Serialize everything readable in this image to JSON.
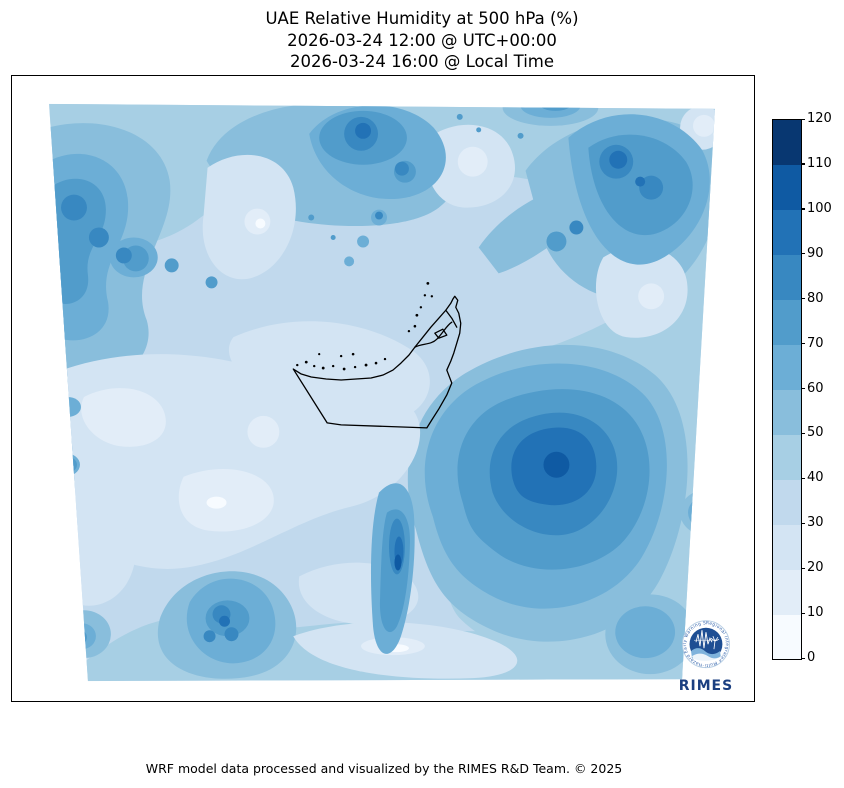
{
  "header": {
    "title": "UAE Relative Humidity at 500 hPa (%)",
    "subtitle_utc": "2026-03-24 12:00 @ UTC+00:00",
    "subtitle_local": "2026-03-24 16:00 @ Local Time"
  },
  "footer": {
    "credit": "WRF model data processed and visualized by the RIMES R&D Team. © 2025"
  },
  "logo": {
    "label": "RIMES",
    "ring_text": "Regional Integrated Multi-Hazard Early Warning System"
  },
  "chart_data": {
    "type": "heatmap",
    "subtype": "filled-contour-map",
    "title": "UAE Relative Humidity at 500 hPa (%)",
    "subtitle_utc": "2026-03-24 12:00 @ UTC+00:00",
    "subtitle_local": "2026-03-24 16:00 @ Local Time",
    "variable": "Relative Humidity",
    "units": "%",
    "pressure_level": "500 hPa",
    "region_outline": "United Arab Emirates",
    "colormap": "Blues",
    "legend_position": "right",
    "levels": [
      0,
      10,
      20,
      30,
      40,
      50,
      60,
      70,
      80,
      90,
      100,
      110,
      120
    ],
    "colors": [
      "#f7fbff",
      "#e2edf8",
      "#d3e4f3",
      "#c1d9ed",
      "#a7cfe4",
      "#89bedc",
      "#6caed6",
      "#519ccb",
      "#3888c1",
      "#2272b6",
      "#0f5aa3",
      "#083771"
    ],
    "colorbar_tick_labels": [
      "0",
      "10",
      "20",
      "30",
      "40",
      "50",
      "60",
      "70",
      "80",
      "90",
      "100",
      "110",
      "120"
    ],
    "features": [
      {
        "location": "large mass east/southeast of UAE (center-right of domain)",
        "value_range": "70-110"
      },
      {
        "location": "northern band across top of domain",
        "value_range": "50-90 with local maxima 90-100"
      },
      {
        "location": "northeast corner cluster",
        "value_range": "80-100"
      },
      {
        "location": "northwest corner blobs",
        "value_range": "70-90"
      },
      {
        "location": "center-left / west of UAE",
        "value_range": "10-30"
      },
      {
        "location": "narrow vertical streak south of UAE",
        "value_range": "80-110"
      },
      {
        "location": "bottom-left cluster",
        "value_range": "70-100"
      },
      {
        "location": "bottom band",
        "value_range": "30-60"
      }
    ]
  }
}
